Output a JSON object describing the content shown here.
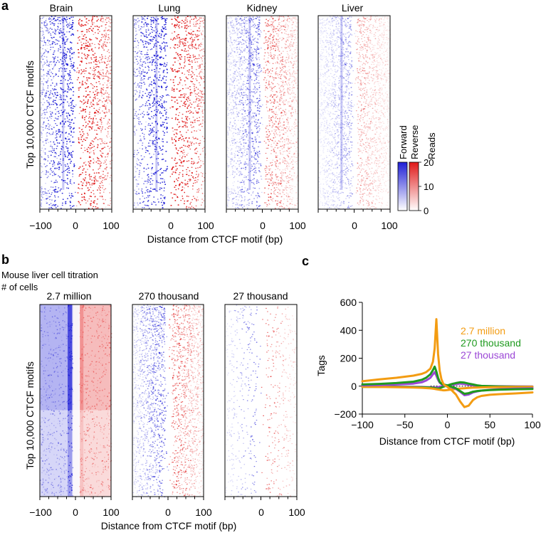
{
  "colors": {
    "forward": "#1f1fd6",
    "reverse": "#e01818",
    "orange": "#f39c12",
    "green": "#1e9a1e",
    "purple": "#9b47d6"
  },
  "panel_a": {
    "label": "a",
    "tissues": [
      "Brain",
      "Lung",
      "Kidney",
      "Liver"
    ],
    "ylabel": "Top 10,000 CTCF motifs",
    "xlabel": "Distance from CTCF motif (bp)",
    "xticks": [
      "−100",
      "0",
      "100"
    ],
    "colorbar": {
      "forward_label": "Forward",
      "reverse_label": "Reverse",
      "title": "Reads",
      "ticks": [
        "20",
        "10",
        "0"
      ]
    }
  },
  "panel_b": {
    "label": "b",
    "title_line1": "Mouse liver cell titration",
    "title_line2": "# of cells",
    "samples": [
      "2.7 million",
      "270 thousand",
      "27 thousand"
    ],
    "ylabel": "Top 10,000 CTCF motifs",
    "xlabel": "Distance from CTCF motif (bp)",
    "xticks": [
      "−100",
      "0",
      "100"
    ]
  },
  "chart_data": [
    {
      "type": "heatmap",
      "panel": "a",
      "title": "",
      "columns": [
        "Brain",
        "Lung",
        "Kidney",
        "Liver"
      ],
      "xlabel": "Distance from CTCF motif (bp)",
      "ylabel": "Top 10,000 CTCF motifs",
      "xlim": [
        -100,
        100
      ],
      "xticks": [
        -100,
        0,
        100
      ],
      "colorbar": {
        "label": "Reads",
        "range": [
          0,
          20
        ],
        "ticks": [
          0,
          10,
          20
        ],
        "strands": [
          "Forward",
          "Reverse"
        ]
      }
    },
    {
      "type": "heatmap",
      "panel": "b",
      "title": "Mouse liver cell titration",
      "columns": [
        "2.7 million",
        "270 thousand",
        "27 thousand"
      ],
      "xlabel": "Distance from CTCF motif (bp)",
      "ylabel": "Top 10,000 CTCF motifs",
      "xlim": [
        -100,
        100
      ],
      "xticks": [
        -100,
        0,
        100
      ]
    },
    {
      "type": "line",
      "panel": "c",
      "label": "c",
      "title": "",
      "xlabel": "Distance from CTCF motif (bp)",
      "ylabel": "Tags",
      "xlim": [
        -100,
        100
      ],
      "ylim": [
        -200,
        600
      ],
      "xticks": [
        -100,
        -50,
        0,
        50,
        100
      ],
      "yticks": [
        -200,
        0,
        200,
        400,
        600
      ],
      "x": [
        -100,
        -80,
        -60,
        -40,
        -30,
        -25,
        -20,
        -17,
        -15,
        -13,
        -11,
        -9,
        -7,
        -5,
        -3,
        0,
        5,
        10,
        15,
        20,
        25,
        30,
        35,
        40,
        50,
        60,
        80,
        100
      ],
      "series": [
        {
          "name": "2.7 million",
          "strand": "forward",
          "color": "#f39c12",
          "values": [
            35,
            48,
            60,
            75,
            88,
            100,
            125,
            175,
            270,
            480,
            230,
            110,
            50,
            20,
            5,
            -5,
            -30,
            -60,
            -110,
            -150,
            -140,
            -100,
            -80,
            -70,
            -62,
            -58,
            -52,
            -45
          ]
        },
        {
          "name": "2.7 million",
          "strand": "reverse",
          "color": "#f39c12",
          "values": [
            -5,
            -6,
            -8,
            -10,
            -12,
            -14,
            -16,
            -18,
            -20,
            -22,
            -24,
            -26,
            -28,
            -30,
            -30,
            -28,
            -24,
            -20,
            -17,
            -15,
            -13,
            -11,
            -10,
            -9,
            -8,
            -7,
            -6,
            -5
          ]
        },
        {
          "name": "270 thousand",
          "strand": "forward",
          "color": "#1e9a1e",
          "values": [
            12,
            16,
            22,
            32,
            45,
            60,
            85,
            115,
            140,
            105,
            60,
            30,
            18,
            12,
            10,
            5,
            -5,
            -15,
            -35,
            -55,
            -50,
            -40,
            -35,
            -32,
            -28,
            -25,
            -22,
            -20
          ]
        },
        {
          "name": "270 thousand",
          "strand": "reverse",
          "color": "#1e9a1e",
          "values": [
            -5,
            -5,
            -6,
            -7,
            -8,
            -9,
            -10,
            -12,
            -14,
            -16,
            -18,
            -16,
            -10,
            -5,
            0,
            5,
            15,
            22,
            28,
            25,
            18,
            12,
            6,
            2,
            0,
            -2,
            -4,
            -5
          ]
        },
        {
          "name": "27 thousand",
          "strand": "forward",
          "color": "#9b47d6",
          "values": [
            6,
            8,
            12,
            18,
            28,
            40,
            60,
            85,
            100,
            75,
            45,
            25,
            15,
            8,
            4,
            0,
            -8,
            -20,
            -40,
            -65,
            -60,
            -45,
            -38,
            -32,
            -26,
            -22,
            -18,
            -15
          ]
        },
        {
          "name": "27 thousand",
          "strand": "reverse",
          "color": "#9b47d6",
          "values": [
            -3,
            -3,
            -4,
            -5,
            -6,
            -7,
            -8,
            -9,
            -10,
            -10,
            -8,
            -5,
            -2,
            0,
            2,
            5,
            10,
            14,
            18,
            15,
            10,
            6,
            3,
            1,
            0,
            -1,
            -2,
            -3
          ]
        }
      ],
      "legend": [
        "2.7 million",
        "270 thousand",
        "27 thousand"
      ]
    }
  ]
}
